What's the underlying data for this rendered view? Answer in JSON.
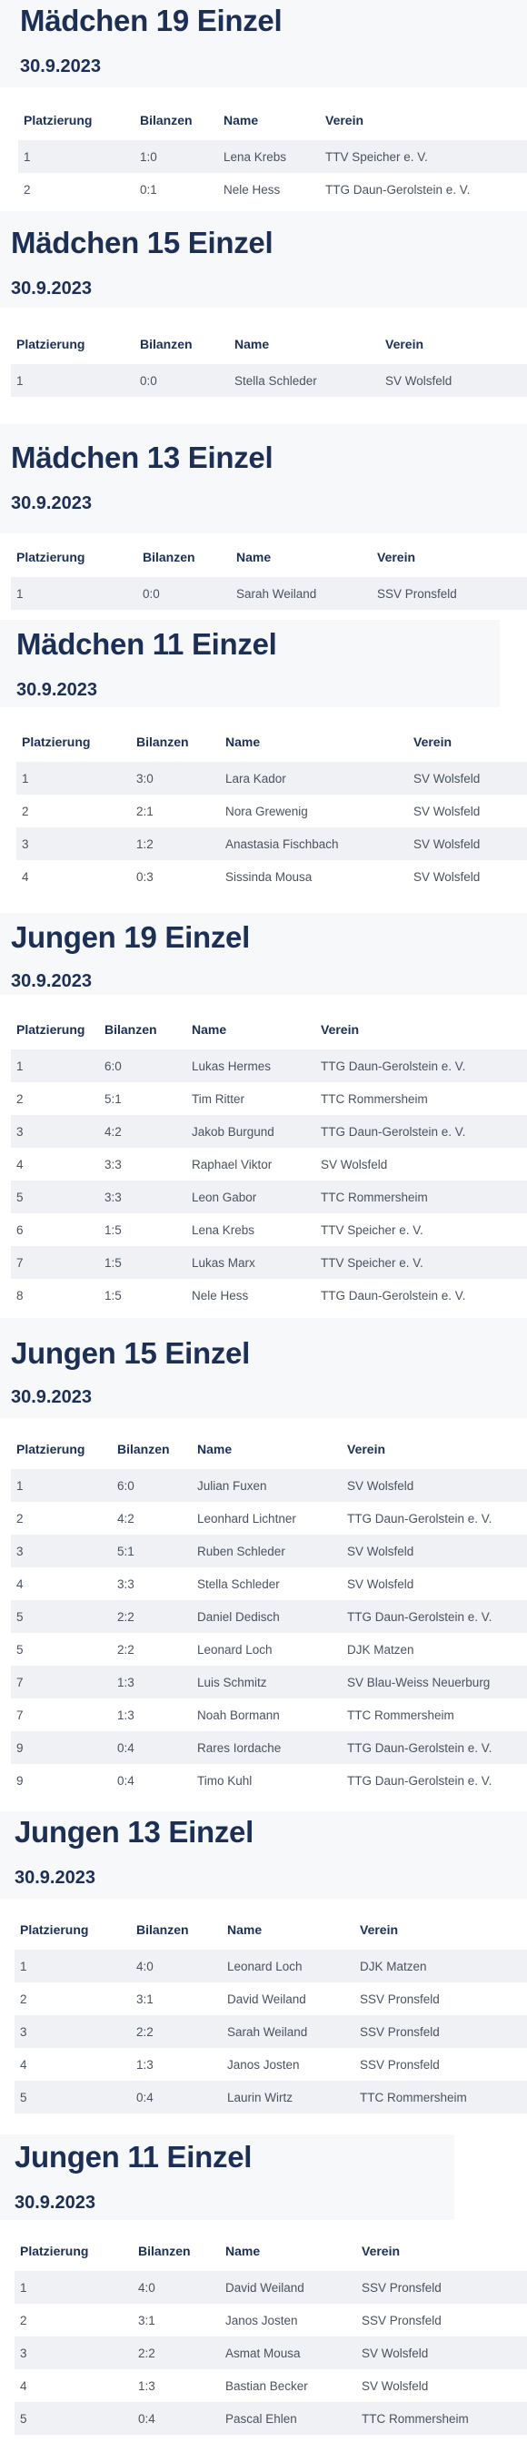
{
  "columns": [
    "Platzierung",
    "Bilanzen",
    "Name",
    "Verein"
  ],
  "sections": [
    {
      "title": "Mädchen 19 Einzel",
      "date": "30.9.2023",
      "rows": [
        [
          "1",
          "1:0",
          "Lena Krebs",
          "TTV Speicher e. V."
        ],
        [
          "2",
          "0:1",
          "Nele Hess",
          "TTG Daun-Gerolstein e. V."
        ]
      ]
    },
    {
      "title": "Mädchen 15 Einzel",
      "date": "30.9.2023",
      "rows": [
        [
          "1",
          "0:0",
          "Stella Schleder",
          "SV Wolsfeld"
        ]
      ]
    },
    {
      "title": "Mädchen 13 Einzel",
      "date": "30.9.2023",
      "rows": [
        [
          "1",
          "0:0",
          "Sarah Weiland",
          "SSV Pronsfeld"
        ]
      ]
    },
    {
      "title": "Mädchen 11 Einzel",
      "date": "30.9.2023",
      "rows": [
        [
          "1",
          "3:0",
          "Lara Kador",
          "SV Wolsfeld"
        ],
        [
          "2",
          "2:1",
          "Nora Grewenig",
          "SV Wolsfeld"
        ],
        [
          "3",
          "1:2",
          "Anastasia Fischbach",
          "SV Wolsfeld"
        ],
        [
          "4",
          "0:3",
          "Sissinda Mousa",
          "SV Wolsfeld"
        ]
      ]
    },
    {
      "title": "Jungen 19 Einzel",
      "date": "30.9.2023",
      "rows": [
        [
          "1",
          "6:0",
          "Lukas Hermes",
          "TTG Daun-Gerolstein e. V."
        ],
        [
          "2",
          "5:1",
          "Tim Ritter",
          "TTC Rommersheim"
        ],
        [
          "3",
          "4:2",
          "Jakob Burgund",
          "TTG Daun-Gerolstein e. V."
        ],
        [
          "4",
          "3:3",
          "Raphael Viktor",
          "SV Wolsfeld"
        ],
        [
          "5",
          "3:3",
          "Leon Gabor",
          "TTC Rommersheim"
        ],
        [
          "6",
          "1:5",
          "Lena Krebs",
          "TTV Speicher e. V."
        ],
        [
          "7",
          "1:5",
          "Lukas Marx",
          "TTV Speicher e. V."
        ],
        [
          "8",
          "1:5",
          "Nele Hess",
          "TTG Daun-Gerolstein e. V."
        ]
      ]
    },
    {
      "title": "Jungen 15 Einzel",
      "date": "30.9.2023",
      "rows": [
        [
          "1",
          "6:0",
          "Julian Fuxen",
          "SV Wolsfeld"
        ],
        [
          "2",
          "4:2",
          "Leonhard Lichtner",
          "TTG Daun-Gerolstein e. V."
        ],
        [
          "3",
          "5:1",
          "Ruben Schleder",
          "SV Wolsfeld"
        ],
        [
          "4",
          "3:3",
          "Stella Schleder",
          "SV Wolsfeld"
        ],
        [
          "5",
          "2:2",
          "Daniel Dedisch",
          "TTG Daun-Gerolstein e. V."
        ],
        [
          "5",
          "2:2",
          "Leonard Loch",
          "DJK Matzen"
        ],
        [
          "7",
          "1:3",
          "Luis Schmitz",
          "SV Blau-Weiss Neuerburg"
        ],
        [
          "7",
          "1:3",
          "Noah Bormann",
          "TTC Rommersheim"
        ],
        [
          "9",
          "0:4",
          "Rares Iordache",
          "TTG Daun-Gerolstein e. V."
        ],
        [
          "9",
          "0:4",
          "Timo Kuhl",
          "TTG Daun-Gerolstein e. V."
        ]
      ]
    },
    {
      "title": "Jungen 13 Einzel",
      "date": "30.9.2023",
      "rows": [
        [
          "1",
          "4:0",
          "Leonard Loch",
          "DJK Matzen"
        ],
        [
          "2",
          "3:1",
          "David Weiland",
          "SSV Pronsfeld"
        ],
        [
          "3",
          "2:2",
          "Sarah Weiland",
          "SSV Pronsfeld"
        ],
        [
          "4",
          "1:3",
          "Janos Josten",
          "SSV Pronsfeld"
        ],
        [
          "5",
          "0:4",
          "Laurin Wirtz",
          "TTC Rommersheim"
        ]
      ]
    },
    {
      "title": "Jungen 11 Einzel",
      "date": "30.9.2023",
      "rows": [
        [
          "1",
          "4:0",
          "David Weiland",
          "SSV Pronsfeld"
        ],
        [
          "2",
          "3:1",
          "Janos Josten",
          "SSV Pronsfeld"
        ],
        [
          "3",
          "2:2",
          "Asmat Mousa",
          "SV Wolsfeld"
        ],
        [
          "4",
          "1:3",
          "Bastian Becker",
          "SV Wolsfeld"
        ],
        [
          "5",
          "0:4",
          "Pascal Ehlen",
          "TTC Rommersheim"
        ]
      ]
    }
  ]
}
